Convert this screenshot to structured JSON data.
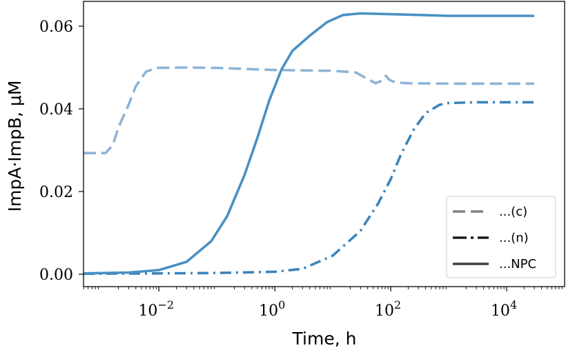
{
  "chart_data": {
    "type": "line",
    "xlabel": "Time, h",
    "ylabel": "ImpA·ImpB, μM",
    "xscale": "log",
    "xlim": [
      0.0005,
      100000
    ],
    "ylim": [
      -0.003,
      0.066
    ],
    "grid": false,
    "x_ticks": [
      {
        "value": 0.01,
        "base": "10",
        "exp": "−2"
      },
      {
        "value": 1,
        "base": "10",
        "exp": "0"
      },
      {
        "value": 100,
        "base": "10",
        "exp": "2"
      },
      {
        "value": 10000,
        "base": "10",
        "exp": "4"
      }
    ],
    "y_ticks": [
      {
        "value": 0.0,
        "label": "0.00"
      },
      {
        "value": 0.02,
        "label": "0.02"
      },
      {
        "value": 0.04,
        "label": "0.04"
      },
      {
        "value": 0.06,
        "label": "0.06"
      }
    ],
    "legend": {
      "position": "lower-right",
      "entries": [
        {
          "label": "...(c)",
          "dash": "dashed"
        },
        {
          "label": "...(n)",
          "dash": "dashdot"
        },
        {
          "label": "...NPC",
          "dash": "solid"
        }
      ]
    },
    "series": [
      {
        "label": "...(c)",
        "dash": "dashed",
        "color": "#8cb4d6",
        "points": [
          [
            0.0005,
            0.0293
          ],
          [
            0.0012,
            0.0293
          ],
          [
            0.0016,
            0.0312
          ],
          [
            0.002,
            0.0355
          ],
          [
            0.003,
            0.041
          ],
          [
            0.004,
            0.0455
          ],
          [
            0.006,
            0.049
          ],
          [
            0.009,
            0.0499
          ],
          [
            0.03,
            0.05
          ],
          [
            0.1,
            0.0499
          ],
          [
            1,
            0.0494
          ],
          [
            10,
            0.0492
          ],
          [
            25,
            0.0488
          ],
          [
            40,
            0.0472
          ],
          [
            55,
            0.0462
          ],
          [
            70,
            0.0468
          ],
          [
            82,
            0.048
          ],
          [
            95,
            0.047
          ],
          [
            120,
            0.0464
          ],
          [
            200,
            0.0462
          ],
          [
            1000,
            0.0461
          ],
          [
            30000,
            0.0461
          ]
        ]
      },
      {
        "label": "...(n)",
        "dash": "dashdot",
        "color": "#3a84bc",
        "points": [
          [
            0.0005,
            0.0001
          ],
          [
            0.01,
            0.0002
          ],
          [
            0.1,
            0.0003
          ],
          [
            1,
            0.0006
          ],
          [
            3,
            0.0013
          ],
          [
            10,
            0.0045
          ],
          [
            30,
            0.0105
          ],
          [
            60,
            0.017
          ],
          [
            100,
            0.023
          ],
          [
            150,
            0.029
          ],
          [
            250,
            0.035
          ],
          [
            400,
            0.039
          ],
          [
            700,
            0.041
          ],
          [
            1000,
            0.0414
          ],
          [
            3000,
            0.0416
          ],
          [
            30000,
            0.0416
          ]
        ]
      },
      {
        "label": "...NPC",
        "dash": "solid",
        "color": "#4a90c4",
        "points": [
          [
            0.0005,
            0.0002
          ],
          [
            0.003,
            0.0004
          ],
          [
            0.01,
            0.001
          ],
          [
            0.03,
            0.003
          ],
          [
            0.08,
            0.008
          ],
          [
            0.15,
            0.014
          ],
          [
            0.3,
            0.024
          ],
          [
            0.5,
            0.033
          ],
          [
            0.8,
            0.042
          ],
          [
            1.3,
            0.0495
          ],
          [
            2,
            0.054
          ],
          [
            4,
            0.0577
          ],
          [
            8,
            0.061
          ],
          [
            15,
            0.0627
          ],
          [
            30,
            0.0631
          ],
          [
            100,
            0.0629
          ],
          [
            1000,
            0.0625
          ],
          [
            30000,
            0.0625
          ]
        ]
      }
    ]
  }
}
